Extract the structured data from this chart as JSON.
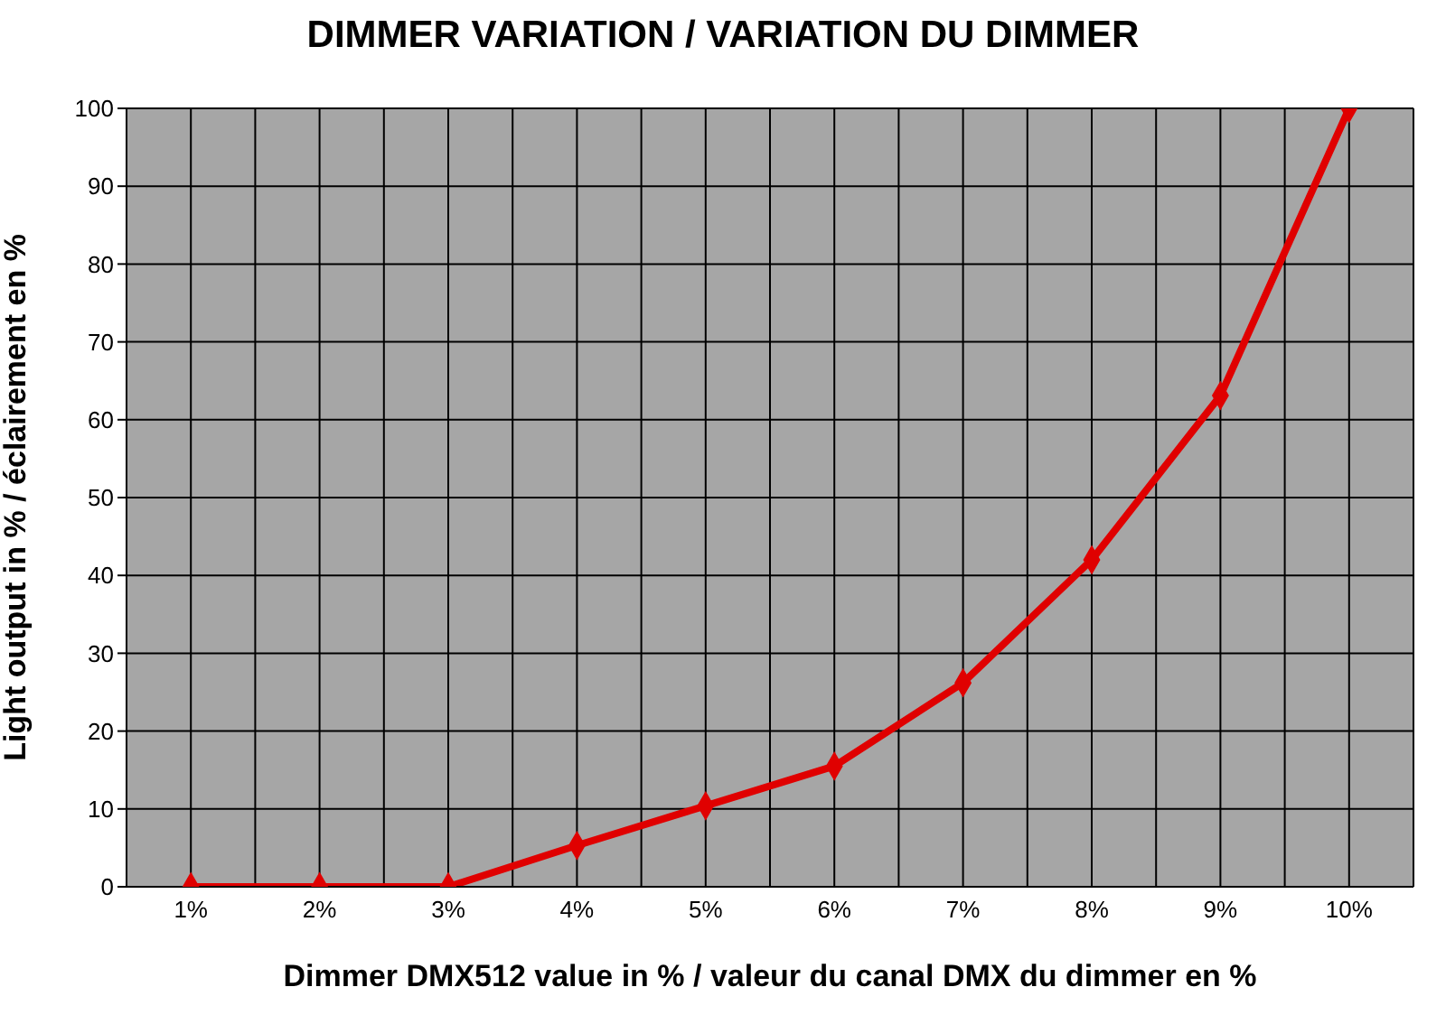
{
  "chart_data": {
    "type": "line",
    "title": "DIMMER VARIATION / VARIATION DU DIMMER",
    "xlabel": "Dimmer DMX512 value in % / valeur du canal DMX du dimmer en %",
    "ylabel": "Light output in % / éclairement en %",
    "categories": [
      "1%",
      "2%",
      "3%",
      "4%",
      "5%",
      "6%",
      "7%",
      "8%",
      "9%",
      "10%"
    ],
    "series": [
      {
        "color": "#e00000",
        "values": [
          0,
          0,
          0,
          5.3,
          10.4,
          15.5,
          26.2,
          42,
          63.1,
          100
        ]
      }
    ],
    "ylim": [
      0,
      100
    ],
    "yticks": [
      0,
      10,
      20,
      30,
      40,
      50,
      60,
      70,
      80,
      90,
      100
    ],
    "grid": true,
    "legend": false,
    "marker": "diamond",
    "line_style": "solid"
  }
}
